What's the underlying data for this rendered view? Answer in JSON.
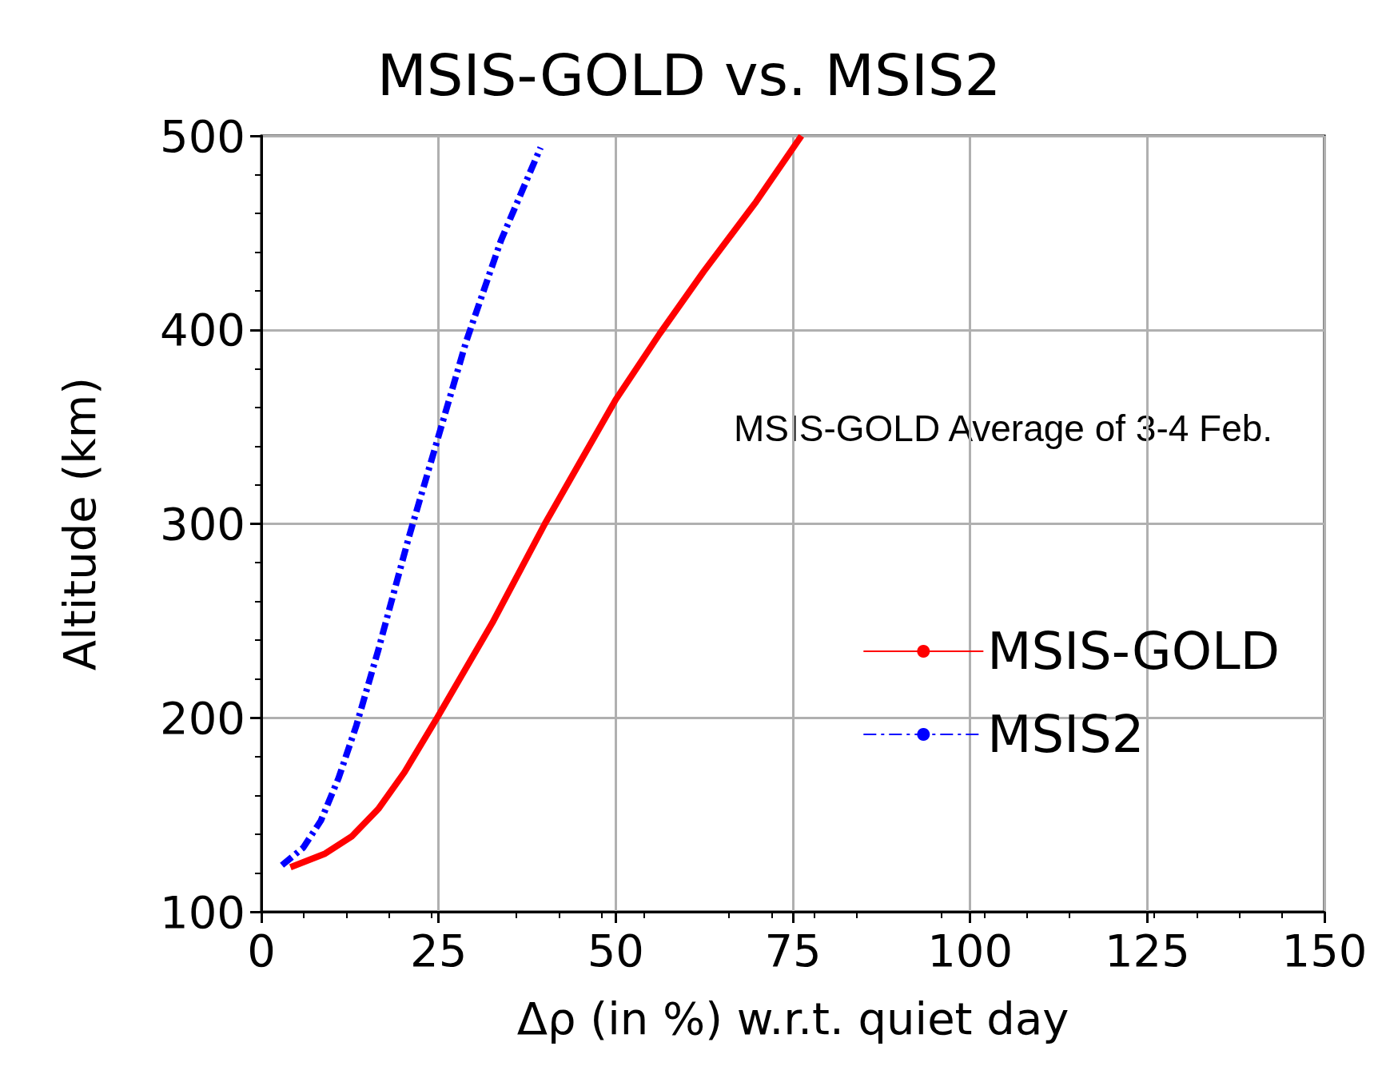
{
  "chart_data": {
    "type": "line",
    "title": "MSIS-GOLD vs. MSIS2",
    "xlabel": "Δρ (in %) w.r.t. quiet day",
    "ylabel": "Altitude (km)",
    "annotations": [
      "MSIS-GOLD Average of 3-4 Feb."
    ],
    "xlim": [
      0,
      150
    ],
    "xticks": [
      0,
      25,
      50,
      75,
      100,
      125,
      150
    ],
    "ylim": [
      100,
      500
    ],
    "yticks": [
      100,
      200,
      300,
      400,
      500
    ],
    "grid": true,
    "legend": "right",
    "marker": "none",
    "series": [
      {
        "name": "MSIS-GOLD",
        "color": "#ff0000",
        "line_style": "solid",
        "x": [
          4.1,
          9,
          12.8,
          16.5,
          20.2,
          24.8,
          32.6,
          40,
          45,
          50,
          56.2,
          62.4,
          69.8,
          76.2
        ],
        "values": [
          123,
          130,
          139,
          153,
          172,
          200,
          249,
          300,
          332,
          364,
          398,
          430,
          466,
          500
        ]
      },
      {
        "name": "MSIS2",
        "color": "#0000ff",
        "line_style": "dashed",
        "x": [
          2.9,
          5.9,
          8.4,
          10.9,
          13.4,
          16.5,
          20.8,
          24.5,
          28.9,
          33.8,
          39.4
        ],
        "values": [
          124,
          133,
          147,
          169,
          196,
          235,
          293,
          339,
          394,
          446,
          494
        ]
      }
    ]
  }
}
